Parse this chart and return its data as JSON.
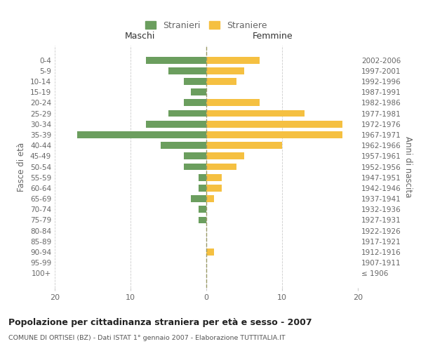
{
  "age_groups": [
    "0-4",
    "5-9",
    "10-14",
    "15-19",
    "20-24",
    "25-29",
    "30-34",
    "35-39",
    "40-44",
    "45-49",
    "50-54",
    "55-59",
    "60-64",
    "65-69",
    "70-74",
    "75-79",
    "80-84",
    "85-89",
    "90-94",
    "95-99",
    "100+"
  ],
  "birth_years": [
    "2002-2006",
    "1997-2001",
    "1992-1996",
    "1987-1991",
    "1982-1986",
    "1977-1981",
    "1972-1976",
    "1967-1971",
    "1962-1966",
    "1957-1961",
    "1952-1956",
    "1947-1951",
    "1942-1946",
    "1937-1941",
    "1932-1936",
    "1927-1931",
    "1922-1926",
    "1917-1921",
    "1912-1916",
    "1907-1911",
    "≤ 1906"
  ],
  "maschi": [
    8,
    5,
    3,
    2,
    3,
    5,
    8,
    17,
    6,
    3,
    3,
    1,
    1,
    2,
    1,
    1,
    0,
    0,
    0,
    0,
    0
  ],
  "femmine": [
    7,
    5,
    4,
    0,
    7,
    13,
    18,
    18,
    10,
    5,
    4,
    2,
    2,
    1,
    0,
    0,
    0,
    0,
    1,
    0,
    0
  ],
  "color_maschi": "#6b9e5e",
  "color_femmine": "#f5c041",
  "title": "Popolazione per cittadinanza straniera per età e sesso - 2007",
  "subtitle": "COMUNE DI ORTISEI (BZ) - Dati ISTAT 1° gennaio 2007 - Elaborazione TUTTITALIA.IT",
  "ylabel_left": "Fasce di età",
  "ylabel_right": "Anni di nascita",
  "xlabel_left": "Maschi",
  "xlabel_right": "Femmine",
  "legend_stranieri": "Stranieri",
  "legend_straniere": "Straniere",
  "xlim": 20,
  "background_color": "#ffffff",
  "grid_color": "#cccccc",
  "text_color": "#666666"
}
